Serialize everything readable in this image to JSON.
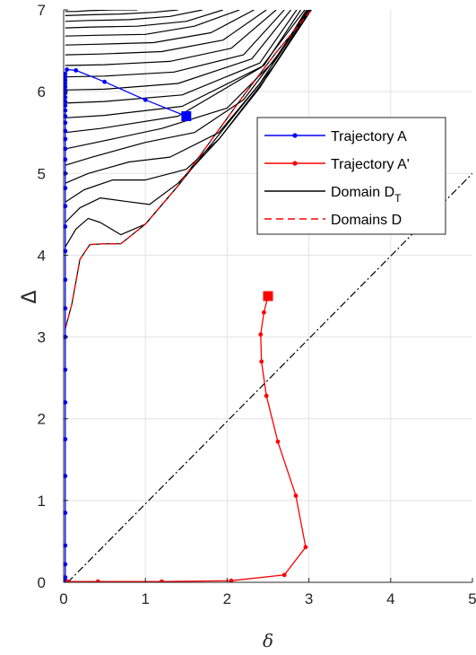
{
  "chart_data": {
    "type": "line",
    "xlabel": "δ",
    "ylabel": "Δ",
    "xlim": [
      0,
      5
    ],
    "ylim": [
      0,
      7
    ],
    "xticks": [
      "0",
      "1",
      "2",
      "3",
      "4",
      "5"
    ],
    "yticks": [
      "0",
      "1",
      "2",
      "3",
      "4",
      "5",
      "6",
      "7"
    ],
    "grid": true,
    "legend_position": "top-right",
    "colors": {
      "trajA": "#0000ff",
      "trajA2": "#ff0000",
      "domainDT": "#000000",
      "domainD": "#ff0000",
      "diag": "#000000"
    },
    "legend": [
      {
        "label": "Trajectory A",
        "style": "blue-dot-line"
      },
      {
        "label": "Trajectory A'",
        "style": "red-dot-line"
      },
      {
        "label": "Domain D",
        "sub": "T",
        "style": "black-line"
      },
      {
        "label": "Domains D",
        "style": "red-dashed"
      }
    ],
    "trajectory_a": {
      "x": [
        1.5,
        1.0,
        0.5,
        0.15,
        0.04,
        0.02,
        0.02,
        0.02,
        0.02,
        0.02,
        0.02,
        0.02,
        0.02,
        0.02,
        0.02,
        0.02,
        0.02,
        0.02,
        0.02,
        0.02,
        0.02,
        0.02,
        0.02,
        0.02,
        0.02,
        0.02,
        0.02,
        0.02,
        0.02,
        0.02,
        0.02,
        0.02,
        0.02,
        0.02,
        0.02,
        0.02,
        0.02,
        0.02,
        0.02,
        0.02
      ],
      "y": [
        5.7,
        5.9,
        6.12,
        6.26,
        6.27,
        6.22,
        6.18,
        6.14,
        6.1,
        6.06,
        6.02,
        5.98,
        5.93,
        5.88,
        5.83,
        5.77,
        5.7,
        5.62,
        5.52,
        5.42,
        5.3,
        5.17,
        5.0,
        4.82,
        4.6,
        4.35,
        4.05,
        3.7,
        3.35,
        3.0,
        2.6,
        2.2,
        1.75,
        1.3,
        0.85,
        0.45,
        0.22,
        0.06,
        0.02,
        0.01
      ]
    },
    "trajectory_a_prime": {
      "x": [
        2.5,
        2.45,
        2.41,
        2.42,
        2.48,
        2.62,
        2.84,
        2.96,
        2.7,
        2.05,
        1.2,
        0.42,
        0.05
      ],
      "y": [
        3.5,
        3.3,
        3.03,
        2.7,
        2.28,
        1.72,
        1.06,
        0.43,
        0.09,
        0.02,
        0.01,
        0.01,
        0.01
      ]
    },
    "domain_d": {
      "x": [
        0.02,
        0.1,
        0.2,
        0.32,
        0.5,
        0.7,
        1.0,
        1.4,
        1.8,
        2.2,
        2.6,
        3.03
      ],
      "y": [
        3.1,
        3.4,
        3.95,
        4.13,
        4.14,
        4.14,
        4.38,
        4.85,
        5.4,
        5.95,
        6.48,
        7.0
      ]
    },
    "domain_dt_curves": [
      {
        "x": [
          0.02,
          0.15,
          0.3,
          0.6,
          0.9
        ],
        "y": [
          6.98,
          6.98,
          6.99,
          7.0,
          7.0
        ]
      },
      {
        "x": [
          0.02,
          0.3,
          0.7,
          1.1,
          1.4
        ],
        "y": [
          6.93,
          6.94,
          6.95,
          6.97,
          7.0
        ]
      },
      {
        "x": [
          0.02,
          0.3,
          0.8,
          1.3,
          1.7
        ],
        "y": [
          6.86,
          6.87,
          6.88,
          6.92,
          7.0
        ]
      },
      {
        "x": [
          0.02,
          0.35,
          0.9,
          1.5,
          1.95
        ],
        "y": [
          6.78,
          6.79,
          6.8,
          6.86,
          7.0
        ]
      },
      {
        "x": [
          0.02,
          0.4,
          1.0,
          1.6,
          2.15
        ],
        "y": [
          6.68,
          6.69,
          6.7,
          6.8,
          7.0
        ]
      },
      {
        "x": [
          0.02,
          0.4,
          1.1,
          1.8,
          2.33
        ],
        "y": [
          6.57,
          6.58,
          6.6,
          6.72,
          7.0
        ]
      },
      {
        "x": [
          0.02,
          0.45,
          1.2,
          1.95,
          2.48
        ],
        "y": [
          6.45,
          6.46,
          6.49,
          6.63,
          7.0
        ]
      },
      {
        "x": [
          0.02,
          0.5,
          1.3,
          2.05,
          2.6
        ],
        "y": [
          6.32,
          6.33,
          6.37,
          6.53,
          7.0
        ]
      },
      {
        "x": [
          0.02,
          0.5,
          1.35,
          2.2,
          2.7
        ],
        "y": [
          6.18,
          6.19,
          6.24,
          6.45,
          7.0
        ]
      },
      {
        "x": [
          0.02,
          0.5,
          1.4,
          2.3,
          2.78
        ],
        "y": [
          6.02,
          6.03,
          6.1,
          6.4,
          7.0
        ]
      },
      {
        "x": [
          0.02,
          0.5,
          1.45,
          2.4,
          2.85
        ],
        "y": [
          5.86,
          5.88,
          5.96,
          6.35,
          7.0
        ]
      },
      {
        "x": [
          0.02,
          0.5,
          1.45,
          2.45,
          2.9
        ],
        "y": [
          5.68,
          5.71,
          5.82,
          6.32,
          7.0
        ]
      },
      {
        "x": [
          0.02,
          0.45,
          1.4,
          2.42,
          2.95
        ],
        "y": [
          5.5,
          5.55,
          5.7,
          6.3,
          7.0
        ]
      },
      {
        "x": [
          0.02,
          0.4,
          1.2,
          2.0,
          2.6,
          2.97
        ],
        "y": [
          5.3,
          5.38,
          5.55,
          5.8,
          6.4,
          7.0
        ]
      },
      {
        "x": [
          0.02,
          0.35,
          1.0,
          1.6,
          2.2,
          2.62,
          2.99
        ],
        "y": [
          5.1,
          5.2,
          5.38,
          5.5,
          5.9,
          6.45,
          7.0
        ]
      },
      {
        "x": [
          0.02,
          0.3,
          0.8,
          1.3,
          1.9,
          2.4,
          3.0
        ],
        "y": [
          4.88,
          5.0,
          5.14,
          5.2,
          5.5,
          6.1,
          7.0
        ]
      },
      {
        "x": [
          0.02,
          0.25,
          0.6,
          1.0,
          1.5,
          1.9,
          2.4,
          3.01
        ],
        "y": [
          4.65,
          4.8,
          4.92,
          4.92,
          5.05,
          5.42,
          6.05,
          7.0
        ]
      },
      {
        "x": [
          0.02,
          0.2,
          0.45,
          0.75,
          1.05,
          1.4,
          1.9,
          2.5,
          3.02
        ],
        "y": [
          4.4,
          4.58,
          4.7,
          4.66,
          4.62,
          4.88,
          5.42,
          6.2,
          7.0
        ]
      },
      {
        "x": [
          0.02,
          0.15,
          0.3,
          0.45,
          0.7,
          1.0,
          1.4,
          2.0,
          2.6,
          3.03
        ],
        "y": [
          4.1,
          4.32,
          4.45,
          4.4,
          4.25,
          4.38,
          4.85,
          5.6,
          6.35,
          7.0
        ]
      }
    ],
    "diagonal": {
      "x": [
        0.05,
        5.0
      ],
      "y": [
        0.0,
        5.0
      ]
    },
    "start_a": {
      "x": 1.5,
      "y": 5.7
    },
    "start_a_prime": {
      "x": 2.5,
      "y": 3.5
    }
  }
}
